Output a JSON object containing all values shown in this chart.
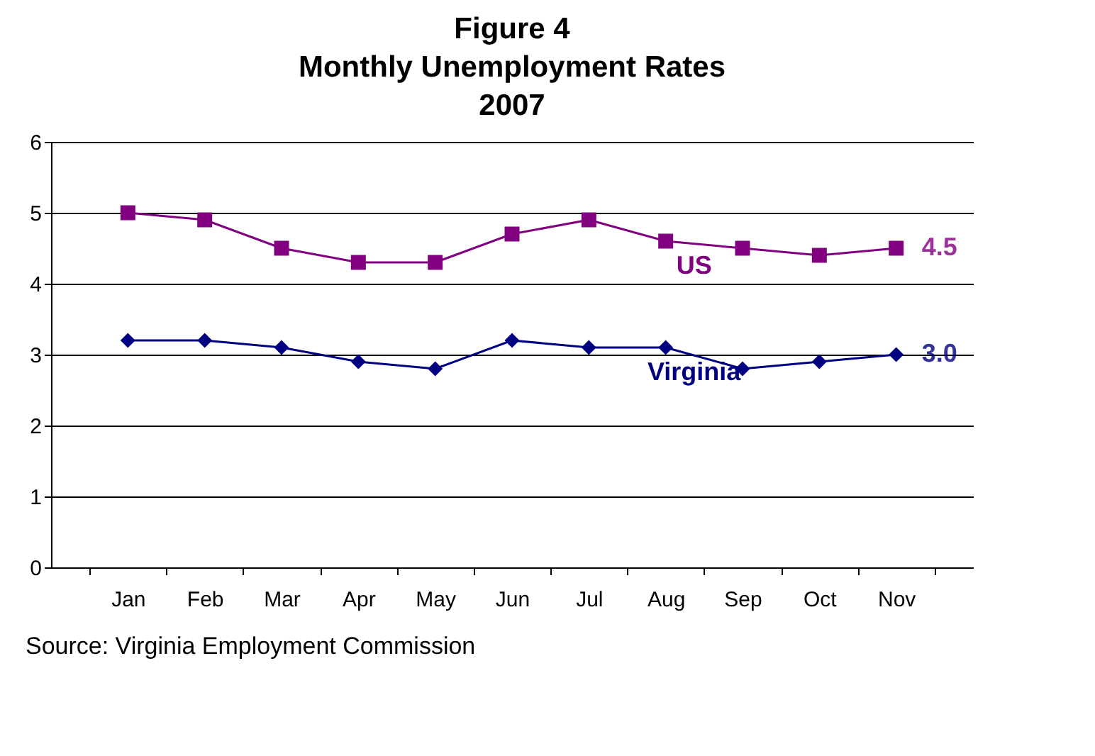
{
  "chart_data": {
    "type": "line",
    "title": "Figure 4\nMonthly Unemployment Rates\n2007",
    "categories": [
      "Jan",
      "Feb",
      "Mar",
      "Apr",
      "May",
      "Jun",
      "Jul",
      "Aug",
      "Sep",
      "Oct",
      "Nov"
    ],
    "series": [
      {
        "name": "US",
        "color": "#800080",
        "marker": "square",
        "values": [
          5.0,
          4.9,
          4.5,
          4.3,
          4.3,
          4.7,
          4.9,
          4.6,
          4.5,
          4.4,
          4.5
        ]
      },
      {
        "name": "Virginia",
        "color": "#000080",
        "marker": "diamond",
        "values": [
          3.2,
          3.2,
          3.1,
          2.9,
          2.8,
          3.2,
          3.1,
          3.1,
          2.8,
          2.9,
          3.0
        ]
      }
    ],
    "ylim": [
      0,
      6
    ],
    "yticks": [
      0,
      1,
      2,
      3,
      4,
      5,
      6
    ],
    "grid": "y",
    "legend": false,
    "annotations": [
      {
        "text": "4.5",
        "x": "Nov",
        "y": 4.5
      },
      {
        "text": "3.0",
        "x": "Nov",
        "y": 3.0
      },
      "Source: Virginia Employment Commission"
    ]
  }
}
